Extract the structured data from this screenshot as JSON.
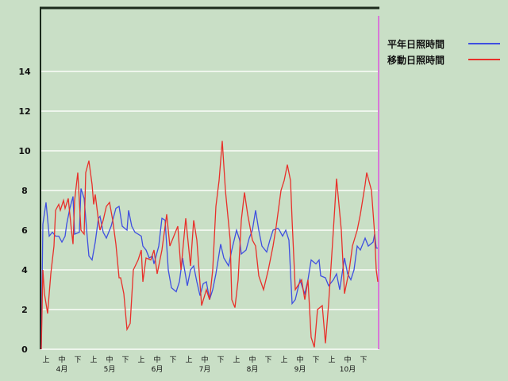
{
  "chart_data": {
    "type": "line",
    "title": "",
    "xlabel": "",
    "ylabel": "",
    "ylim": [
      0,
      17
    ],
    "yticks": [
      "0",
      "2",
      "4",
      "6",
      "8",
      "10",
      "12",
      "14"
    ],
    "grid": true,
    "legend_position": "top-right",
    "x_dekad_labels": [
      "上",
      "中",
      "下"
    ],
    "x_month_labels": [
      "4月",
      "5月",
      "6月",
      "7月",
      "8月",
      "9月",
      "10月"
    ],
    "background_color": "#c9dfc6",
    "series": [
      {
        "name": "平年日照時間",
        "color": "#3f4fe0",
        "points": [
          [
            "4/1",
            0
          ],
          [
            "4/2",
            6.3
          ],
          [
            "4/4",
            7.4
          ],
          [
            "4/6",
            5.7
          ],
          [
            "4/8",
            5.9
          ],
          [
            "4/10",
            5.7
          ],
          [
            "4/12",
            5.7
          ],
          [
            "4/14",
            5.4
          ],
          [
            "4/16",
            5.7
          ],
          [
            "4/17",
            6.3
          ],
          [
            "4/19",
            7.1
          ],
          [
            "4/21",
            7.7
          ],
          [
            "4/22",
            5.8
          ],
          [
            "4/25",
            5.9
          ],
          [
            "4/26",
            8.1
          ],
          [
            "4/28",
            7.6
          ],
          [
            "4/30",
            5.6
          ],
          [
            "5/1",
            4.7
          ],
          [
            "5/3",
            4.5
          ],
          [
            "5/5",
            5.4
          ],
          [
            "5/7",
            6.6
          ],
          [
            "5/8",
            6.7
          ],
          [
            "5/10",
            5.9
          ],
          [
            "5/12",
            5.6
          ],
          [
            "5/15",
            6.2
          ],
          [
            "5/18",
            7.1
          ],
          [
            "5/20",
            7.2
          ],
          [
            "5/22",
            6.2
          ],
          [
            "5/25",
            6.0
          ],
          [
            "5/26",
            7.0
          ],
          [
            "5/28",
            6.2
          ],
          [
            "5/30",
            5.9
          ],
          [
            "6/2",
            5.8
          ],
          [
            "6/4",
            5.7
          ],
          [
            "6/5",
            5.2
          ],
          [
            "6/7",
            5.0
          ],
          [
            "6/9",
            4.6
          ],
          [
            "6/11",
            4.7
          ],
          [
            "6/12",
            4.3
          ],
          [
            "6/15",
            5.2
          ],
          [
            "6/17",
            6.6
          ],
          [
            "6/19",
            6.5
          ],
          [
            "6/21",
            4.0
          ],
          [
            "6/23",
            3.1
          ],
          [
            "6/26",
            2.9
          ],
          [
            "6/28",
            3.4
          ],
          [
            "6/30",
            4.6
          ],
          [
            "7/3",
            3.2
          ],
          [
            "7/5",
            4.0
          ],
          [
            "7/7",
            4.2
          ],
          [
            "7/9",
            3.4
          ],
          [
            "7/11",
            2.7
          ],
          [
            "7/13",
            3.3
          ],
          [
            "7/15",
            3.4
          ],
          [
            "7/17",
            2.5
          ],
          [
            "7/19",
            3.0
          ],
          [
            "7/21",
            3.8
          ],
          [
            "7/24",
            5.3
          ],
          [
            "7/26",
            4.6
          ],
          [
            "7/29",
            4.2
          ],
          [
            "8/1",
            5.0
          ],
          [
            "8/4",
            6.0
          ],
          [
            "8/6",
            5.5
          ],
          [
            "8/7",
            4.8
          ],
          [
            "8/10",
            5.0
          ],
          [
            "8/12",
            5.6
          ],
          [
            "8/14",
            6.0
          ],
          [
            "8/16",
            7.0
          ],
          [
            "8/18",
            6.0
          ],
          [
            "8/20",
            5.2
          ],
          [
            "8/23",
            4.9
          ],
          [
            "8/25",
            5.5
          ],
          [
            "8/27",
            6.0
          ],
          [
            "8/30",
            6.1
          ],
          [
            "9/1",
            6.0
          ],
          [
            "9/3",
            5.7
          ],
          [
            "9/5",
            6.0
          ],
          [
            "9/7",
            5.5
          ],
          [
            "9/9",
            2.3
          ],
          [
            "9/11",
            2.5
          ],
          [
            "9/14",
            3.5
          ],
          [
            "9/16",
            3.0
          ],
          [
            "9/17",
            2.8
          ],
          [
            "9/19",
            3.5
          ],
          [
            "9/21",
            4.5
          ],
          [
            "9/24",
            4.3
          ],
          [
            "9/26",
            4.5
          ],
          [
            "9/27",
            3.7
          ],
          [
            "9/30",
            3.6
          ],
          [
            "10/2",
            3.2
          ],
          [
            "10/5",
            3.5
          ],
          [
            "10/7",
            3.8
          ],
          [
            "10/9",
            3.0
          ],
          [
            "10/12",
            4.6
          ],
          [
            "10/14",
            3.8
          ],
          [
            "10/16",
            3.5
          ],
          [
            "10/18",
            4.0
          ],
          [
            "10/20",
            5.2
          ],
          [
            "10/22",
            5.0
          ],
          [
            "10/25",
            5.6
          ],
          [
            "10/27",
            5.2
          ],
          [
            "10/30",
            5.4
          ],
          [
            "10/31",
            5.8
          ],
          [
            "11/2",
            5.1
          ],
          [
            "11/3",
            5.1
          ]
        ]
      },
      {
        "name": "移動日照時間",
        "color": "#e8302a",
        "points": [
          [
            "4/1",
            0
          ],
          [
            "4/2",
            4.0
          ],
          [
            "4/3",
            2.8
          ],
          [
            "4/5",
            1.8
          ],
          [
            "4/7",
            3.8
          ],
          [
            "4/9",
            5.2
          ],
          [
            "4/10",
            7.0
          ],
          [
            "4/12",
            7.3
          ],
          [
            "4/13",
            7.0
          ],
          [
            "4/15",
            7.5
          ],
          [
            "4/16",
            7.1
          ],
          [
            "4/18",
            7.6
          ],
          [
            "4/20",
            6.0
          ],
          [
            "4/21",
            5.3
          ],
          [
            "4/22",
            7.5
          ],
          [
            "4/24",
            8.9
          ],
          [
            "4/26",
            6.0
          ],
          [
            "4/28",
            5.8
          ],
          [
            "4/29",
            8.9
          ],
          [
            "5/1",
            9.5
          ],
          [
            "5/3",
            8.3
          ],
          [
            "5/4",
            7.3
          ],
          [
            "5/5",
            7.8
          ],
          [
            "5/7",
            6.5
          ],
          [
            "5/8",
            6.0
          ],
          [
            "5/10",
            6.5
          ],
          [
            "5/12",
            7.2
          ],
          [
            "5/14",
            7.4
          ],
          [
            "5/16",
            6.5
          ],
          [
            "5/18",
            5.3
          ],
          [
            "5/20",
            3.6
          ],
          [
            "5/21",
            3.6
          ],
          [
            "5/23",
            2.8
          ],
          [
            "5/25",
            1.0
          ],
          [
            "5/27",
            1.3
          ],
          [
            "5/29",
            4.0
          ],
          [
            "6/2",
            4.5
          ],
          [
            "6/4",
            5.0
          ],
          [
            "6/5",
            3.4
          ],
          [
            "6/7",
            4.6
          ],
          [
            "6/10",
            4.5
          ],
          [
            "6/12",
            5.0
          ],
          [
            "6/14",
            3.8
          ],
          [
            "6/17",
            5.0
          ],
          [
            "6/20",
            6.8
          ],
          [
            "6/22",
            5.2
          ],
          [
            "6/25",
            5.8
          ],
          [
            "6/27",
            6.2
          ],
          [
            "6/29",
            4.0
          ],
          [
            "7/2",
            6.6
          ],
          [
            "7/5",
            4.2
          ],
          [
            "7/7",
            6.5
          ],
          [
            "7/9",
            5.5
          ],
          [
            "7/12",
            2.2
          ],
          [
            "7/15",
            3.0
          ],
          [
            "7/17",
            2.5
          ],
          [
            "7/19",
            4.0
          ],
          [
            "7/21",
            7.2
          ],
          [
            "7/23",
            8.5
          ],
          [
            "7/25",
            10.5
          ],
          [
            "7/27",
            8.0
          ],
          [
            "7/30",
            5.5
          ],
          [
            "8/1",
            2.5
          ],
          [
            "8/3",
            2.1
          ],
          [
            "8/5",
            3.5
          ],
          [
            "8/7",
            6.5
          ],
          [
            "8/9",
            7.9
          ],
          [
            "8/11",
            6.8
          ],
          [
            "8/14",
            5.5
          ],
          [
            "8/16",
            5.2
          ],
          [
            "8/18",
            3.7
          ],
          [
            "8/21",
            3.0
          ],
          [
            "8/24",
            4.0
          ],
          [
            "8/27",
            5.2
          ],
          [
            "8/29",
            6.2
          ],
          [
            "9/2",
            8.0
          ],
          [
            "9/4",
            8.5
          ],
          [
            "9/6",
            9.3
          ],
          [
            "9/8",
            8.5
          ],
          [
            "9/9",
            6.5
          ],
          [
            "9/11",
            3.0
          ],
          [
            "9/15",
            3.5
          ],
          [
            "9/17",
            2.5
          ],
          [
            "9/19",
            3.5
          ],
          [
            "9/21",
            0.6
          ],
          [
            "9/23",
            0.1
          ],
          [
            "9/25",
            2.0
          ],
          [
            "9/28",
            2.2
          ],
          [
            "9/30",
            0.3
          ],
          [
            "10/2",
            2.3
          ],
          [
            "10/5",
            6.0
          ],
          [
            "10/7",
            8.6
          ],
          [
            "10/10",
            6.0
          ],
          [
            "10/12",
            2.8
          ],
          [
            "10/15",
            4.0
          ],
          [
            "10/17",
            5.2
          ],
          [
            "10/20",
            6.0
          ],
          [
            "10/22",
            6.8
          ],
          [
            "10/25",
            8.3
          ],
          [
            "10/26",
            8.9
          ],
          [
            "10/29",
            8.0
          ],
          [
            "10/31",
            5.8
          ],
          [
            "11/2",
            4.0
          ],
          [
            "11/3",
            3.4
          ]
        ]
      }
    ]
  }
}
